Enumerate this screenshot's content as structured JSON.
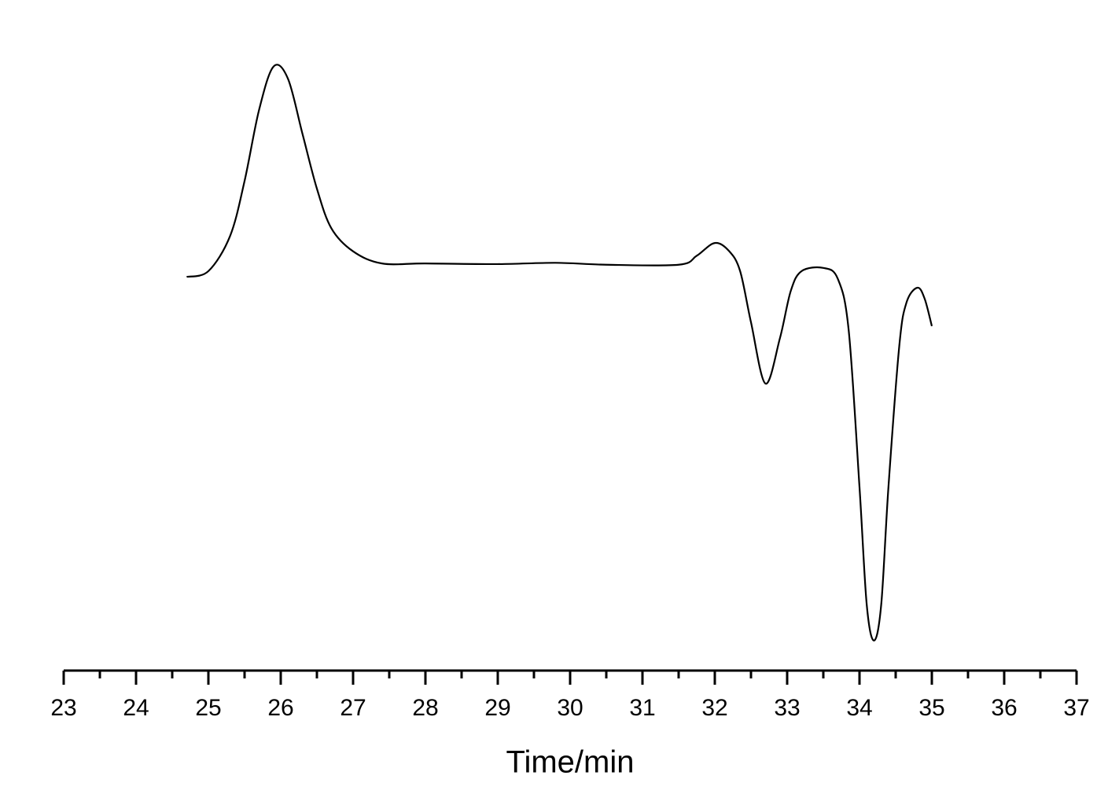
{
  "chart_data": {
    "type": "line",
    "x_label": "Time/min",
    "x": [
      24.7,
      25.0,
      25.3,
      25.5,
      25.7,
      25.9,
      26.1,
      26.3,
      26.5,
      26.7,
      27.0,
      27.4,
      28.0,
      29.0,
      29.8,
      30.5,
      31.5,
      31.75,
      32.0,
      32.2,
      32.35,
      32.5,
      32.7,
      32.9,
      33.05,
      33.2,
      33.5,
      33.7,
      33.85,
      34.0,
      34.1,
      34.2,
      34.3,
      34.4,
      34.55,
      34.65,
      34.8,
      34.9,
      35.0
    ],
    "values": [
      61.6,
      62.5,
      68.0,
      76.6,
      87.7,
      94.5,
      92.6,
      84.0,
      75.4,
      69.2,
      65.6,
      63.7,
      63.7,
      63.6,
      63.8,
      63.5,
      63.5,
      64.9,
      66.9,
      65.6,
      62.5,
      54.5,
      44.9,
      52.0,
      59.4,
      62.5,
      63.0,
      61.3,
      53.3,
      28.7,
      10.3,
      4.7,
      10.3,
      28.7,
      50.8,
      57.6,
      59.9,
      58.2,
      53.9
    ],
    "color": "#000000",
    "xlim": [
      23,
      37
    ],
    "xticks": [
      23,
      24,
      25,
      26,
      27,
      28,
      29,
      30,
      31,
      32,
      33,
      34,
      35,
      36,
      37
    ],
    "ylim": [
      0,
      100
    ]
  }
}
